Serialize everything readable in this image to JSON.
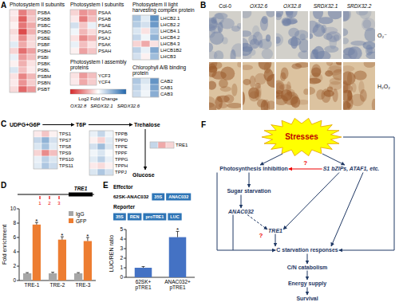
{
  "panel_letters": [
    "A",
    "B",
    "C",
    "D",
    "E",
    "F"
  ],
  "panel_a": {
    "groups": [
      {
        "title": "Photosystem II subunits",
        "genes": [
          "PSBA",
          "PSBB",
          "PSBC",
          "PSBD",
          "PSBE",
          "PSBF",
          "PSBH",
          "PSBI",
          "PSBK",
          "PSBL",
          "PSBM",
          "PSBN",
          "PSBT"
        ],
        "values": [
          [
            -0.3,
            -1.8,
            -1.0
          ],
          [
            -0.4,
            -2.2,
            -0.8
          ],
          [
            -0.2,
            -1.9,
            -1.2
          ],
          [
            -0.5,
            -2.5,
            -1.1
          ],
          [
            -0.3,
            -1.6,
            -0.6
          ],
          [
            0.4,
            -1.2,
            -0.5
          ],
          [
            -0.6,
            -2.0,
            -1.3
          ],
          [
            0.3,
            -1.4,
            -0.9
          ],
          [
            -0.2,
            -1.1,
            -0.4
          ],
          [
            0.5,
            -0.9,
            -0.3
          ],
          [
            -0.4,
            -1.7,
            -1.0
          ],
          [
            -0.3,
            -1.5,
            -0.7
          ],
          [
            -0.5,
            -2.1,
            -1.4
          ]
        ]
      },
      {
        "title": "Photosystem I subunits",
        "genes": [
          "PSAA",
          "PSAB",
          "PSAE",
          "PSAG",
          "PSAJ",
          "PSAK",
          "PSAH"
        ],
        "values": [
          [
            -0.6,
            -1.5,
            -1.2
          ],
          [
            -0.3,
            -1.8,
            -0.9
          ],
          [
            0.6,
            -0.8,
            0.3
          ],
          [
            0.2,
            -1.0,
            -0.5
          ],
          [
            -0.4,
            -1.6,
            -1.1
          ],
          [
            0.3,
            -0.9,
            -0.4
          ],
          [
            -0.2,
            -1.3,
            -0.8
          ]
        ]
      },
      {
        "title": "Photosystem I assembly proteins",
        "genes": [
          "YCF3",
          "YCF4"
        ],
        "values": [
          [
            -0.4,
            -1.4,
            -0.9
          ],
          [
            -0.3,
            -1.2,
            -0.7
          ]
        ]
      },
      {
        "title": "Photosystem II light harvesting complex protein",
        "genes": [
          "LHCB2.1",
          "LHCB2.2",
          "LHCB4.1",
          "LHCB4.2",
          "LHCB4.3",
          "LHCB1B2",
          "LHCB3"
        ],
        "values": [
          [
            1.2,
            0.4,
            2.2
          ],
          [
            1.0,
            0.6,
            2.0
          ],
          [
            0.5,
            -0.4,
            1.1
          ],
          [
            0.8,
            0.2,
            1.5
          ],
          [
            -0.6,
            -1.2,
            -0.4
          ],
          [
            0.9,
            0.3,
            1.7
          ],
          [
            0.6,
            -0.2,
            1.3
          ]
        ]
      },
      {
        "title": "Chlorophyll A/B binding protein",
        "genes": [
          "CAB2",
          "CAB1",
          "CAB3"
        ],
        "values": [
          [
            1.1,
            0.5,
            2.1
          ],
          [
            0.9,
            0.3,
            1.8
          ],
          [
            0.7,
            0.2,
            1.6
          ]
        ]
      }
    ],
    "color_range": [
      -3,
      3
    ],
    "colorbar_label": "Log2 Fold Change",
    "columns": [
      "OX32.8",
      "SRDX32.1",
      "SRDX32.6"
    ]
  },
  "panel_b": {
    "columns": [
      "Col-0",
      "OX32.6",
      "OX32.8",
      "SRDX32.1",
      "SRDX32.2"
    ],
    "rows": [
      "O₂⁻",
      "H₂O₂"
    ]
  },
  "panel_c": {
    "pathway": [
      "UDPG+G6P",
      "T6P",
      "Trehalose",
      "Glucose"
    ],
    "groups": [
      {
        "genes": [
          "TPS1",
          "TPS7",
          "TPS8",
          "TPS9",
          "TPS10",
          "TPS11"
        ],
        "values": [
          [
            -0.3,
            -0.8,
            -0.2
          ],
          [
            0.8,
            1.5,
            0.6
          ],
          [
            0.5,
            1.2,
            0.4
          ],
          [
            -0.6,
            -1.6,
            -0.9
          ],
          [
            0.3,
            0.9,
            0.5
          ],
          [
            0.4,
            1.1,
            0.7
          ]
        ]
      },
      {
        "genes": [
          "TPPB",
          "TPPD",
          "TPPE",
          "TPPF",
          "TPPG",
          "TPPH",
          "TPPJ"
        ],
        "values": [
          [
            0.3,
            0.8,
            0.2
          ],
          [
            -0.2,
            -0.6,
            0.4
          ],
          [
            0.6,
            1.3,
            0.5
          ],
          [
            0.2,
            0.5,
            0.1
          ],
          [
            0.4,
            0.9,
            0.3
          ],
          [
            -0.3,
            -0.5,
            -0.2
          ],
          [
            0.5,
            1.1,
            0.6
          ]
        ]
      },
      {
        "genes": [
          "TRE1"
        ],
        "values": [
          [
            0.8,
            -1.2,
            -0.6
          ]
        ]
      }
    ]
  },
  "panel_d_gene": {
    "gene": "TRE1",
    "sites": [
      "1",
      "2",
      "3"
    ]
  },
  "panel_e_constructs": {
    "effector_label": "Effector",
    "effector_name": "62SK-ANAC032",
    "effector_parts": [
      "35S",
      "ANAC032"
    ],
    "reporter_label": "Reporter",
    "reporter_parts": [
      "35S",
      "REN",
      "proTRE1",
      "LUC"
    ]
  },
  "chart_data": [
    {
      "type": "bar",
      "categories": [
        "TRE-1",
        "TRE-2",
        "TRE-3"
      ],
      "series": [
        {
          "name": "IgG",
          "color": "#a6a6a6",
          "values": [
            1.0,
            1.0,
            1.0
          ],
          "errors": [
            0.1,
            0.15,
            0.1
          ]
        },
        {
          "name": "GFP",
          "color": "#ed7d31",
          "values": [
            7.8,
            5.7,
            5.5
          ],
          "errors": [
            0.3,
            0.4,
            0.5
          ],
          "significance": [
            "*",
            "*",
            "*"
          ]
        }
      ],
      "y_label": "Fold enrichment",
      "ylim": [
        0,
        10
      ],
      "yticks": [
        0,
        2,
        4,
        6,
        8,
        10
      ],
      "legend": "upper right"
    },
    {
      "type": "bar",
      "categories": [
        "62SK+pTRE1",
        "ANAC032+pTRE1"
      ],
      "values": [
        1.0,
        4.2
      ],
      "errors": [
        0.12,
        0.6
      ],
      "significance": [
        null,
        "*"
      ],
      "color": "#4472c4",
      "y_label": "LUC/REN ratio",
      "ylim": [
        0,
        5
      ],
      "yticks": [
        0,
        1,
        2,
        3,
        4,
        5
      ]
    }
  ],
  "panel_f": {
    "nodes": [
      "Stresses",
      "Photosynthesis inhibition",
      "S1 bZIPs, ATAF1, etc.",
      "Sugar starvation",
      "ANAC032",
      "TRE1",
      "C starvation responses",
      "C/N catabolism",
      "Energy supply",
      "Survival"
    ],
    "unknown_marks": [
      "?",
      "?"
    ]
  }
}
